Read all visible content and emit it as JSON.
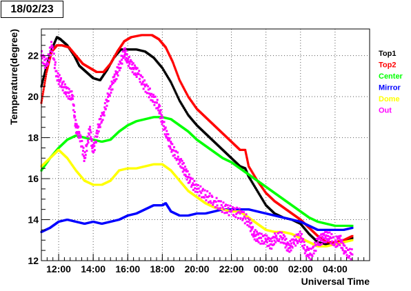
{
  "date_label": "18/02/23",
  "chart_data": {
    "type": "scatter",
    "title": "",
    "xlabel": "Universal Time",
    "ylabel": "Temperature(degree)",
    "x_ticks": [
      "12:00",
      "14:00",
      "16:00",
      "18:00",
      "20:00",
      "22:00",
      "00:00",
      "02:00",
      "04:00"
    ],
    "x_tick_hours": [
      12,
      14,
      16,
      18,
      20,
      22,
      24,
      26,
      28
    ],
    "xlim": [
      11,
      30
    ],
    "y_ticks": [
      12,
      14,
      16,
      18,
      20,
      22
    ],
    "ylim": [
      12,
      23.3
    ],
    "grid": true,
    "legend_position": "right",
    "x_unit": "hours UT (values past 24 belong to the next day)",
    "series": [
      {
        "name": "Top1",
        "color": "#000000",
        "x": [
          11.0,
          11.3,
          11.6,
          11.9,
          12.1,
          12.5,
          12.9,
          13.2,
          13.6,
          14.0,
          14.4,
          14.8,
          15.2,
          15.6,
          16.0,
          16.5,
          17.0,
          17.5,
          18.0,
          18.5,
          19.0,
          19.5,
          20.0,
          20.5,
          21.0,
          21.5,
          22.0,
          22.5,
          22.8,
          23.0,
          23.5,
          24.0,
          24.5,
          25.0,
          25.5,
          26.0,
          26.5,
          27.0,
          27.5,
          28.0,
          28.5,
          29.0
        ],
        "y": [
          20.5,
          21.5,
          22.3,
          22.9,
          22.8,
          22.5,
          22.0,
          21.5,
          21.2,
          20.9,
          20.8,
          21.3,
          21.9,
          22.3,
          22.3,
          22.3,
          22.2,
          21.9,
          21.4,
          20.7,
          19.8,
          19.1,
          18.6,
          18.2,
          17.8,
          17.4,
          17.0,
          16.6,
          16.5,
          16.1,
          15.4,
          14.7,
          14.3,
          14.1,
          14.0,
          13.8,
          13.3,
          12.9,
          12.8,
          12.8,
          12.9,
          13.1
        ]
      },
      {
        "name": "Top2",
        "color": "#ff0000",
        "x": [
          11.0,
          11.3,
          11.6,
          11.9,
          12.2,
          12.6,
          13.0,
          13.4,
          13.8,
          14.2,
          14.6,
          15.0,
          15.4,
          15.8,
          16.2,
          16.8,
          17.4,
          17.8,
          18.2,
          18.6,
          19.0,
          19.5,
          20.0,
          20.5,
          21.0,
          21.5,
          22.0,
          22.5,
          22.8,
          23.0,
          23.5,
          24.0,
          24.5,
          25.0,
          25.5,
          26.0,
          26.5,
          27.0,
          27.5,
          28.0,
          28.5,
          29.0
        ],
        "y": [
          19.7,
          21.2,
          22.2,
          22.5,
          22.5,
          22.4,
          22.0,
          21.6,
          21.4,
          21.2,
          21.2,
          21.6,
          22.2,
          22.7,
          22.9,
          23.0,
          23.0,
          22.8,
          22.4,
          21.7,
          20.8,
          20.0,
          19.4,
          19.0,
          18.6,
          18.2,
          17.8,
          17.4,
          17.4,
          16.6,
          15.9,
          15.3,
          14.9,
          14.6,
          14.3,
          14.0,
          13.6,
          13.2,
          12.9,
          12.9,
          13.0,
          13.2
        ]
      },
      {
        "name": "Center",
        "color": "#00ff00",
        "x": [
          11.0,
          11.5,
          12.0,
          12.5,
          13.0,
          13.5,
          14.0,
          14.5,
          15.0,
          15.5,
          16.0,
          16.5,
          17.0,
          17.5,
          18.0,
          18.5,
          19.0,
          19.5,
          20.0,
          20.5,
          21.0,
          21.5,
          22.0,
          22.5,
          23.0,
          23.5,
          24.0,
          24.5,
          25.0,
          25.5,
          26.0,
          26.5,
          27.0,
          27.5,
          28.0,
          28.5,
          29.0
        ],
        "y": [
          16.4,
          17.0,
          17.5,
          17.9,
          18.1,
          18.0,
          17.9,
          17.8,
          17.9,
          18.3,
          18.6,
          18.8,
          18.9,
          19.0,
          19.0,
          18.9,
          18.6,
          18.3,
          17.9,
          17.6,
          17.3,
          17.0,
          16.8,
          16.5,
          16.2,
          15.9,
          15.6,
          15.3,
          15.0,
          14.7,
          14.4,
          14.1,
          13.9,
          13.8,
          13.7,
          13.7,
          13.7
        ]
      },
      {
        "name": "Mirror",
        "color": "#0000ff",
        "x": [
          11.0,
          11.5,
          12.0,
          12.5,
          13.0,
          13.5,
          14.0,
          14.5,
          15.0,
          15.5,
          16.0,
          16.5,
          17.0,
          17.5,
          18.0,
          18.2,
          18.5,
          19.0,
          19.5,
          20.0,
          20.5,
          21.0,
          21.5,
          22.0,
          22.5,
          23.0,
          23.5,
          24.0,
          24.5,
          25.0,
          25.5,
          26.0,
          26.5,
          27.0,
          27.5,
          28.0,
          28.5,
          29.0
        ],
        "y": [
          13.4,
          13.6,
          13.9,
          14.0,
          13.9,
          13.8,
          13.9,
          13.8,
          13.9,
          14.0,
          14.2,
          14.3,
          14.5,
          14.7,
          14.7,
          14.8,
          14.4,
          14.2,
          14.2,
          14.3,
          14.3,
          14.4,
          14.5,
          14.5,
          14.5,
          14.5,
          14.4,
          14.3,
          14.2,
          14.1,
          14.0,
          13.9,
          13.7,
          13.5,
          13.5,
          13.5,
          13.5,
          13.6
        ]
      },
      {
        "name": "Dome",
        "color": "#ffff00",
        "x": [
          11.0,
          11.5,
          12.0,
          12.5,
          13.0,
          13.5,
          14.0,
          14.5,
          15.0,
          15.5,
          16.0,
          16.5,
          17.0,
          17.5,
          18.0,
          18.5,
          19.0,
          19.5,
          20.0,
          20.5,
          21.0,
          21.5,
          22.0,
          22.5,
          23.0,
          23.5,
          24.0,
          24.5,
          25.0,
          25.5,
          26.0,
          26.5,
          27.0,
          27.5,
          28.0,
          28.5,
          29.0
        ],
        "y": [
          16.6,
          17.0,
          17.4,
          17.0,
          16.4,
          15.9,
          15.7,
          15.7,
          15.9,
          16.4,
          16.5,
          16.5,
          16.6,
          16.7,
          16.7,
          16.4,
          15.9,
          15.4,
          15.1,
          14.8,
          14.6,
          14.5,
          14.4,
          14.4,
          14.1,
          13.8,
          13.5,
          13.4,
          13.4,
          13.3,
          13.1,
          12.9,
          12.7,
          12.7,
          12.8,
          12.9,
          13.0
        ]
      },
      {
        "name": "Out",
        "color": "#ff00ff",
        "x": [
          11.0,
          11.3,
          11.6,
          11.9,
          12.2,
          12.5,
          12.8,
          13.0,
          13.2,
          13.5,
          13.8,
          14.0,
          14.3,
          14.6,
          14.9,
          15.2,
          15.5,
          15.8,
          16.0,
          16.3,
          16.6,
          17.0,
          17.4,
          17.8,
          18.0,
          18.3,
          18.6,
          19.0,
          19.3,
          19.6,
          20.0,
          20.5,
          21.0,
          21.5,
          22.0,
          22.5,
          23.0,
          23.3,
          23.6,
          24.0,
          24.3,
          24.6,
          25.0,
          25.3,
          25.6,
          26.0,
          26.3,
          26.6,
          27.0,
          27.3,
          27.6,
          28.0,
          28.3,
          28.6,
          29.0
        ],
        "y": [
          22.0,
          21.5,
          22.5,
          21.0,
          20.6,
          20.2,
          20.0,
          18.5,
          18.2,
          17.0,
          18.4,
          17.3,
          18.5,
          19.2,
          20.1,
          20.8,
          21.4,
          22.2,
          21.8,
          21.4,
          21.1,
          20.5,
          20.0,
          19.5,
          18.8,
          18.0,
          17.4,
          16.9,
          16.4,
          15.9,
          15.5,
          15.2,
          14.9,
          14.6,
          14.4,
          14.3,
          13.9,
          13.3,
          13.1,
          13.0,
          12.8,
          13.2,
          13.1,
          12.6,
          12.9,
          13.2,
          12.5,
          12.3,
          12.9,
          13.1,
          13.2,
          12.9,
          13.0,
          12.4,
          12.3
        ]
      }
    ]
  }
}
